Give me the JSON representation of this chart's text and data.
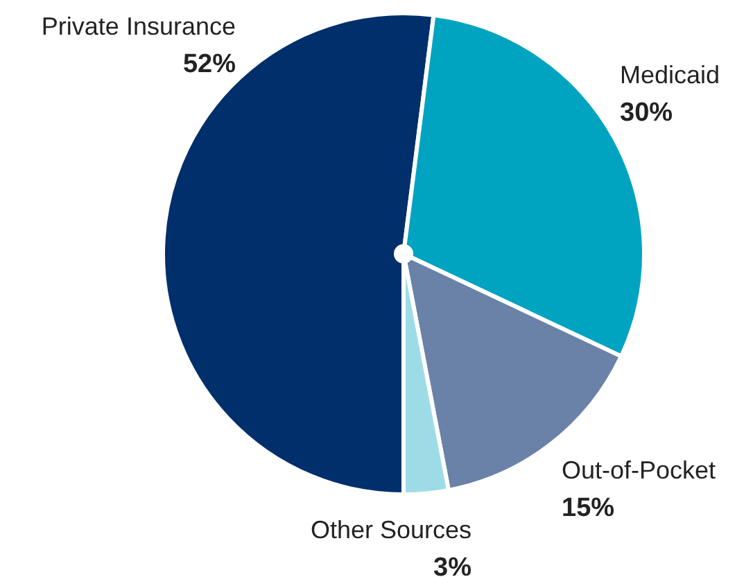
{
  "chart_data": {
    "type": "pie",
    "categories": [
      "Private Insurance",
      "Medicaid",
      "Out-of-Pocket",
      "Other Sources"
    ],
    "values": [
      52,
      30,
      15,
      3
    ],
    "colors": [
      "#002f6c",
      "#00a3c0",
      "#6a82a8",
      "#9ddce6"
    ],
    "value_labels": [
      "52%",
      "30%",
      "15%",
      "3%"
    ],
    "legend": false
  }
}
